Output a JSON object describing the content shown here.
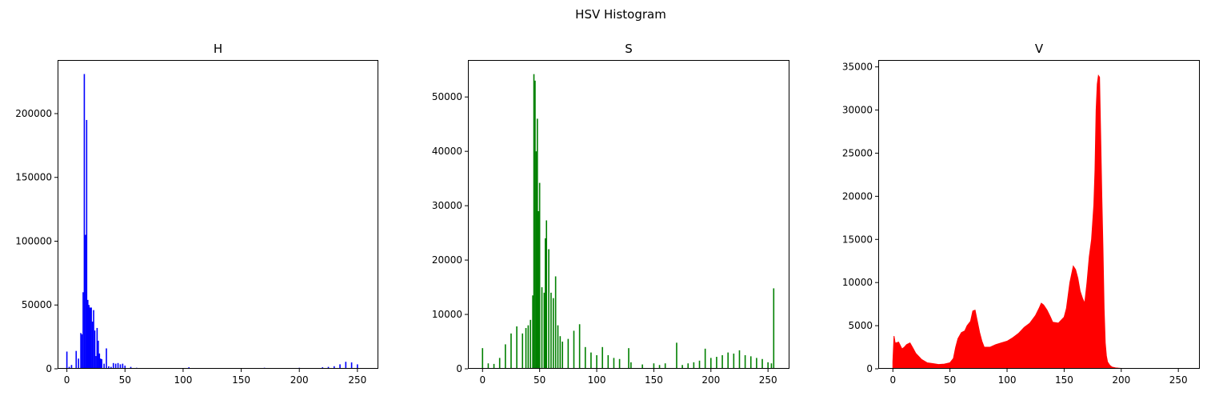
{
  "suptitle": "HSV Histogram",
  "chart_data": [
    {
      "type": "bar",
      "title": "H",
      "color": "#0000ff",
      "xlim": [
        -8,
        268
      ],
      "ylim": [
        0,
        242000
      ],
      "xticks": [
        0,
        50,
        100,
        150,
        200,
        250
      ],
      "yticks": [
        0,
        50000,
        100000,
        150000,
        200000
      ],
      "x": [
        0,
        2,
        4,
        6,
        8,
        10,
        12,
        13,
        14,
        15,
        16,
        17,
        18,
        19,
        20,
        21,
        22,
        23,
        24,
        25,
        26,
        27,
        28,
        29,
        30,
        32,
        34,
        36,
        38,
        40,
        42,
        44,
        46,
        48,
        50,
        55,
        60,
        70,
        90,
        105,
        120,
        150,
        155,
        170,
        200,
        207,
        220,
        225,
        230,
        235,
        240,
        245,
        250
      ],
      "values": [
        13500,
        1500,
        3000,
        600,
        14000,
        8000,
        28000,
        27000,
        60000,
        231000,
        105000,
        195000,
        54000,
        50000,
        48000,
        48000,
        37000,
        46000,
        30000,
        10000,
        32000,
        22000,
        12000,
        8000,
        7500,
        4000,
        16000,
        2000,
        1500,
        4500,
        4000,
        4500,
        3500,
        4000,
        2500,
        1500,
        800,
        500,
        400,
        1200,
        300,
        300,
        600,
        800,
        800,
        400,
        1200,
        1500,
        2000,
        3500,
        5500,
        5000,
        3500
      ]
    },
    {
      "type": "bar",
      "title": "S",
      "color": "#008000",
      "xlim": [
        -12.8,
        268.8
      ],
      "ylim": [
        0,
        56800
      ],
      "xticks": [
        0,
        50,
        100,
        150,
        200,
        250
      ],
      "yticks": [
        0,
        10000,
        20000,
        30000,
        40000,
        50000
      ],
      "x": [
        0,
        5,
        10,
        15,
        20,
        25,
        30,
        35,
        38,
        40,
        42,
        44,
        45,
        46,
        47,
        48,
        49,
        50,
        52,
        54,
        55,
        56,
        58,
        60,
        62,
        64,
        66,
        68,
        70,
        75,
        80,
        85,
        90,
        95,
        100,
        105,
        110,
        115,
        120,
        128,
        130,
        140,
        150,
        155,
        160,
        170,
        175,
        180,
        185,
        190,
        195,
        200,
        205,
        210,
        215,
        220,
        225,
        230,
        235,
        240,
        245,
        250,
        253,
        255
      ],
      "values": [
        3800,
        1000,
        900,
        2000,
        4500,
        6500,
        7800,
        6500,
        7500,
        8000,
        9000,
        13500,
        54200,
        53000,
        40000,
        46000,
        29000,
        34200,
        15000,
        14000,
        24000,
        27300,
        22000,
        14000,
        13000,
        17000,
        8000,
        6000,
        5000,
        5500,
        7000,
        8200,
        4000,
        3000,
        2500,
        4000,
        2500,
        2000,
        1800,
        3800,
        1200,
        800,
        1000,
        700,
        1000,
        4800,
        700,
        1000,
        1200,
        1500,
        3700,
        2000,
        2200,
        2500,
        3000,
        2800,
        3400,
        2500,
        2300,
        2000,
        1800,
        1200,
        1000,
        14800
      ]
    },
    {
      "type": "area",
      "title": "V",
      "color": "#ff0000",
      "xlim": [
        -12.8,
        268.8
      ],
      "ylim": [
        0,
        35800
      ],
      "xticks": [
        0,
        50,
        100,
        150,
        200,
        250
      ],
      "yticks": [
        0,
        5000,
        10000,
        15000,
        20000,
        25000,
        30000,
        35000
      ],
      "x": [
        0,
        1,
        2,
        3,
        5,
        8,
        10,
        12,
        15,
        18,
        20,
        25,
        30,
        35,
        40,
        45,
        50,
        53,
        55,
        57,
        60,
        63,
        65,
        68,
        70,
        72,
        74,
        76,
        78,
        80,
        85,
        90,
        95,
        100,
        105,
        110,
        115,
        120,
        125,
        128,
        130,
        132,
        135,
        138,
        140,
        145,
        150,
        152,
        155,
        158,
        160,
        162,
        164,
        166,
        168,
        170,
        172,
        174,
        176,
        177,
        178,
        179,
        180,
        181,
        182,
        183,
        184,
        185,
        186,
        187,
        188,
        190,
        192,
        195,
        200,
        210,
        220,
        230,
        255
      ],
      "values": [
        800,
        3800,
        3000,
        3000,
        3100,
        2300,
        2500,
        2800,
        3000,
        2300,
        1800,
        1100,
        700,
        600,
        500,
        550,
        700,
        1200,
        2500,
        3500,
        4200,
        4400,
        5000,
        5500,
        6700,
        6800,
        5500,
        4200,
        3200,
        2500,
        2500,
        2800,
        3000,
        3200,
        3600,
        4100,
        4800,
        5300,
        6200,
        7000,
        7600,
        7400,
        6800,
        6000,
        5400,
        5300,
        6000,
        7000,
        10000,
        11900,
        11500,
        10500,
        9000,
        8200,
        7600,
        10000,
        13000,
        15000,
        19000,
        23000,
        30000,
        33000,
        34000,
        33800,
        27000,
        20000,
        14000,
        7000,
        3000,
        1500,
        800,
        400,
        200,
        100,
        50,
        30,
        20,
        0,
        0
      ]
    }
  ]
}
